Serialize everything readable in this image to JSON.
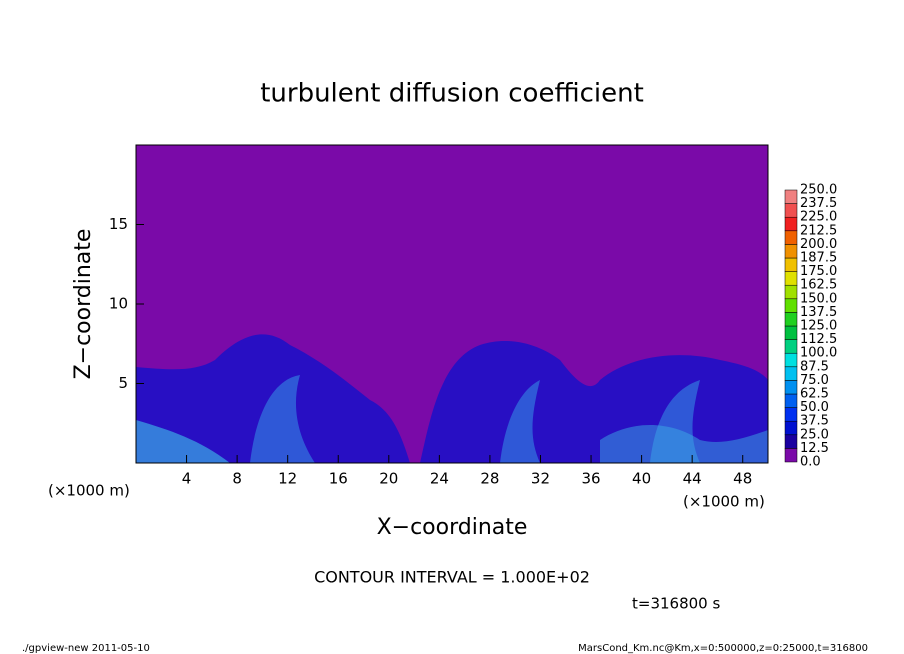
{
  "chart_data": {
    "type": "contour",
    "title": "turbulent diffusion coefficient",
    "xlabel": "X−coordinate",
    "ylabel": "Z−coordinate",
    "x_unit": "(×1000 m)",
    "x_unit_right": "(×1000 m)",
    "note": "CONTOUR INTERVAL = 1.000E+02",
    "time": "t=316800 s",
    "footer_left": "./gpview-new   2011-05-10",
    "footer_right": "MarsCond_Km.nc@Km,x=0:500000,z=0:25000,t=316800",
    "xlim": [
      0,
      50
    ],
    "ylim": [
      0,
      20
    ],
    "xticks": [
      4,
      8,
      12,
      16,
      20,
      24,
      28,
      32,
      36,
      40,
      44,
      48
    ],
    "yticks": [
      5,
      10,
      15
    ],
    "colorbar": {
      "levels": [
        {
          "value": 0,
          "label": "0.0"
        },
        12.5,
        {
          "value": 25,
          "label": "25.0"
        },
        37.5,
        {
          "value": 50,
          "label": "50.0"
        },
        62.5,
        {
          "value": 75,
          "label": "75.0"
        },
        87.5,
        {
          "value": 100,
          "label": "100.0"
        },
        112.5,
        {
          "value": 125,
          "label": "125.0"
        },
        137.5,
        {
          "value": 150,
          "label": "150.0"
        },
        162.5,
        {
          "value": 175,
          "label": "175.0"
        },
        187.5,
        {
          "value": 200,
          "label": "200.0"
        },
        212.5,
        {
          "value": 225,
          "label": "225.0"
        },
        237.5,
        {
          "value": 250,
          "label": "250.0"
        }
      ],
      "colors": [
        "#7a0aa8",
        "#1a00a0",
        "#0010d0",
        "#0030f0",
        "#0060f0",
        "#0090f0",
        "#00c0f0",
        "#00e0e0",
        "#00d080",
        "#00c040",
        "#20d020",
        "#60e000",
        "#a0e000",
        "#e0e000",
        "#f0c000",
        "#f09000",
        "#f06000",
        "#f02020",
        "#f05050",
        "#f08080"
      ]
    }
  }
}
